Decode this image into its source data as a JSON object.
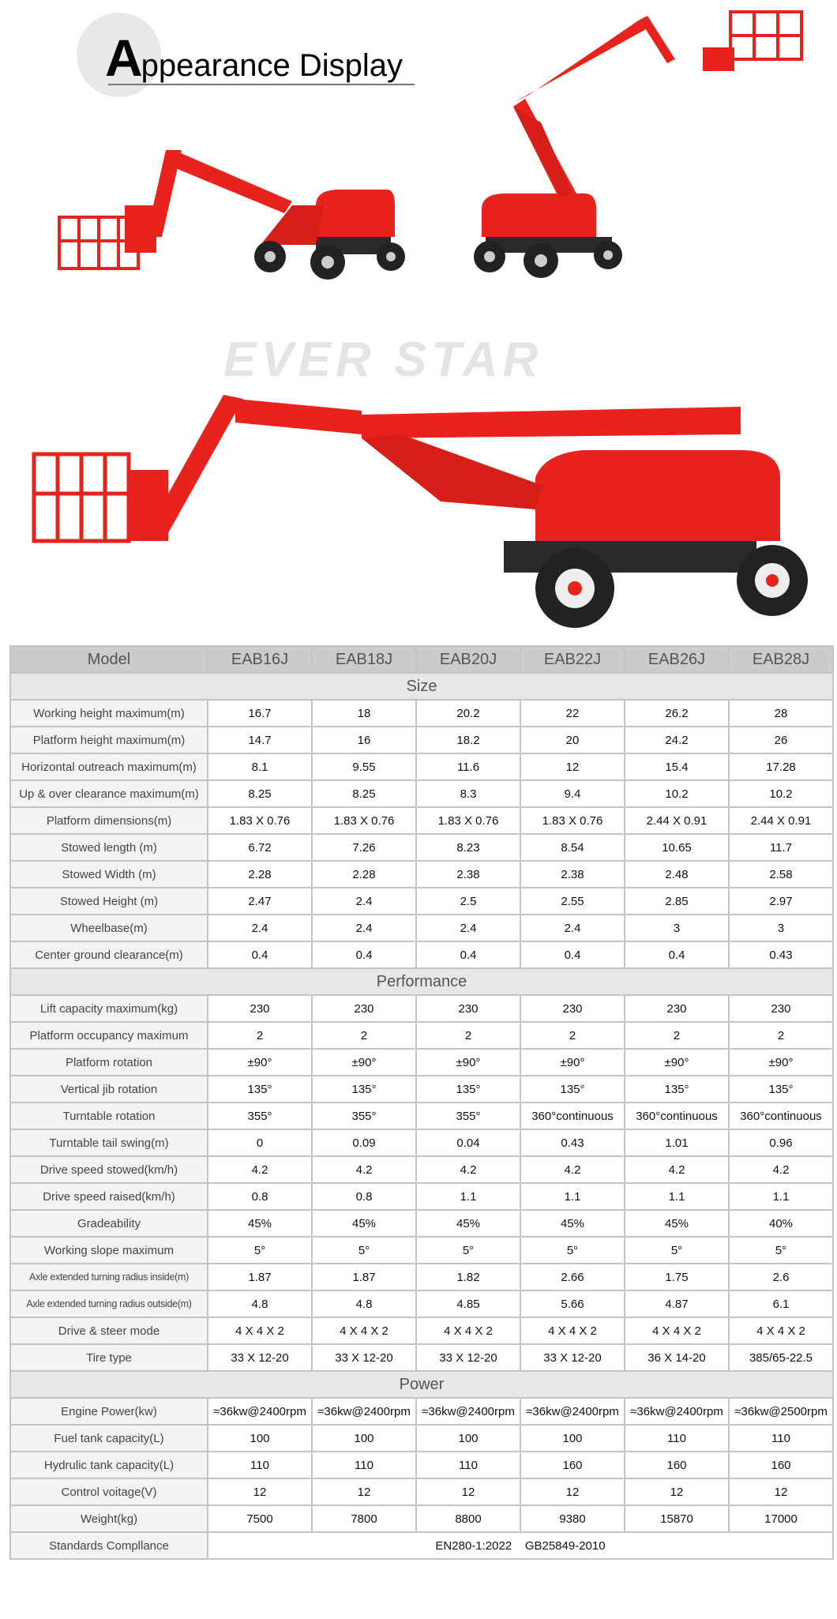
{
  "header": {
    "title_initial": "A",
    "title_rest": "ppearance Display"
  },
  "watermark": "EVER STAR",
  "colors": {
    "lift_red": "#e8231e",
    "header_gray": "#cbcbcb",
    "section_gray": "#e7e7e7"
  },
  "images": [
    {
      "name": "articulating-boom-lift-stowed"
    },
    {
      "name": "articulating-boom-lift-raised"
    },
    {
      "name": "articulating-boom-lift-large"
    }
  ],
  "table": {
    "model_label": "Model",
    "models": [
      "EAB16J",
      "EAB18J",
      "EAB20J",
      "EAB22J",
      "EAB26J",
      "EAB28J"
    ],
    "sections": [
      {
        "title": "Size",
        "rows": [
          {
            "label": "Working height maximum(m)",
            "values": [
              "16.7",
              "18",
              "20.2",
              "22",
              "26.2",
              "28"
            ]
          },
          {
            "label": "Platform height maximum(m)",
            "values": [
              "14.7",
              "16",
              "18.2",
              "20",
              "24.2",
              "26"
            ]
          },
          {
            "label": "Horizontal outreach maximum(m)",
            "values": [
              "8.1",
              "9.55",
              "11.6",
              "12",
              "15.4",
              "17.28"
            ]
          },
          {
            "label": "Up & over clearance maximum(m)",
            "values": [
              "8.25",
              "8.25",
              "8.3",
              "9.4",
              "10.2",
              "10.2"
            ]
          },
          {
            "label": "Platform dimensions(m)",
            "values": [
              "1.83 X 0.76",
              "1.83 X 0.76",
              "1.83 X 0.76",
              "1.83 X 0.76",
              "2.44 X 0.91",
              "2.44 X 0.91"
            ]
          },
          {
            "label": "Stowed length (m)",
            "values": [
              "6.72",
              "7.26",
              "8.23",
              "8.54",
              "10.65",
              "11.7"
            ]
          },
          {
            "label": "Stowed Width (m)",
            "values": [
              "2.28",
              "2.28",
              "2.38",
              "2.38",
              "2.48",
              "2.58"
            ]
          },
          {
            "label": "Stowed Height (m)",
            "values": [
              "2.47",
              "2.4",
              "2.5",
              "2.55",
              "2.85",
              "2.97"
            ]
          },
          {
            "label": "Wheelbase(m)",
            "values": [
              "2.4",
              "2.4",
              "2.4",
              "2.4",
              "3",
              "3"
            ]
          },
          {
            "label": "Center ground clearance(m)",
            "values": [
              "0.4",
              "0.4",
              "0.4",
              "0.4",
              "0.4",
              "0.43"
            ]
          }
        ]
      },
      {
        "title": "Performance",
        "rows": [
          {
            "label": "Lift capacity maximum(kg)",
            "values": [
              "230",
              "230",
              "230",
              "230",
              "230",
              "230"
            ]
          },
          {
            "label": "Platform occupancy maximum",
            "values": [
              "2",
              "2",
              "2",
              "2",
              "2",
              "2"
            ]
          },
          {
            "label": "Platform rotation",
            "values": [
              "±90°",
              "±90°",
              "±90°",
              "±90°",
              "±90°",
              "±90°"
            ]
          },
          {
            "label": "Vertical jib rotation",
            "values": [
              "135°",
              "135°",
              "135°",
              "135°",
              "135°",
              "135°"
            ]
          },
          {
            "label": "Turntable rotation",
            "values": [
              "355°",
              "355°",
              "355°",
              "360°continuous",
              "360°continuous",
              "360°continuous"
            ]
          },
          {
            "label": "Turntable tail swing(m)",
            "values": [
              "0",
              "0.09",
              "0.04",
              "0.43",
              "1.01",
              "0.96"
            ]
          },
          {
            "label": "Drive speed stowed(km/h)",
            "values": [
              "4.2",
              "4.2",
              "4.2",
              "4.2",
              "4.2",
              "4.2"
            ]
          },
          {
            "label": "Drive speed raised(km/h)",
            "values": [
              "0.8",
              "0.8",
              "1.1",
              "1.1",
              "1.1",
              "1.1"
            ]
          },
          {
            "label": "Gradeability",
            "values": [
              "45%",
              "45%",
              "45%",
              "45%",
              "45%",
              "40%"
            ]
          },
          {
            "label": "Working slope maximum",
            "values": [
              "5°",
              "5°",
              "5°",
              "5°",
              "5°",
              "5°"
            ]
          },
          {
            "label": "Axle extended turning radius inside(m)",
            "values": [
              "1.87",
              "1.87",
              "1.82",
              "2.66",
              "1.75",
              "2.6"
            ]
          },
          {
            "label": "Axle extended turning radius outside(m)",
            "values": [
              "4.8",
              "4.8",
              "4.85",
              "5.66",
              "4.87",
              "6.1"
            ]
          },
          {
            "label": "Drive & steer mode",
            "values": [
              "4 X 4 X 2",
              "4 X 4 X 2",
              "4 X 4 X 2",
              "4 X 4 X 2",
              "4 X 4 X 2",
              "4 X 4 X 2"
            ]
          },
          {
            "label": "Tire type",
            "values": [
              "33 X 12-20",
              "33 X 12-20",
              "33 X 12-20",
              "33 X 12-20",
              "36 X 14-20",
              "385/65-22.5"
            ]
          }
        ]
      },
      {
        "title": "Power",
        "rows": [
          {
            "label": "Engine Power(kw)",
            "values": [
              "≈36kw@2400rpm",
              "≈36kw@2400rpm",
              "≈36kw@2400rpm",
              "≈36kw@2400rpm",
              "≈36kw@2400rpm",
              "≈36kw@2500rpm"
            ]
          },
          {
            "label": "Fuel tank capacity(L)",
            "values": [
              "100",
              "100",
              "100",
              "100",
              "110",
              "110"
            ]
          },
          {
            "label": "Hydrulic tank capacity(L)",
            "values": [
              "110",
              "110",
              "110",
              "160",
              "160",
              "160"
            ]
          },
          {
            "label": "Control voitage(V)",
            "values": [
              "12",
              "12",
              "12",
              "12",
              "12",
              "12"
            ]
          },
          {
            "label": "Weight(kg)",
            "values": [
              "7500",
              "7800",
              "8800",
              "9380",
              "15870",
              "17000"
            ]
          }
        ]
      }
    ],
    "standards": {
      "label": "Standards Compllance",
      "value": "EN280-1:2022    GB25849-2010"
    }
  }
}
